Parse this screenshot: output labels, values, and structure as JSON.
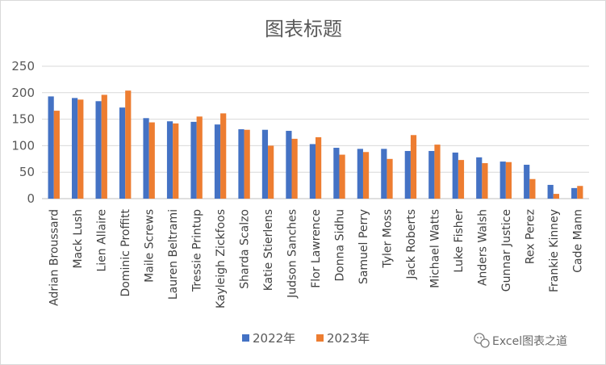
{
  "chart_data": {
    "type": "bar",
    "title": "图表标题",
    "xlabel": "",
    "ylabel": "",
    "ylim": [
      0,
      250
    ],
    "yticks": [
      0,
      50,
      100,
      150,
      200,
      250
    ],
    "grid": true,
    "legend_position": "bottom",
    "categories": [
      "Adrian Broussard",
      "Mack Lush",
      "Lien Allaire",
      "Dominic Proffitt",
      "Maile Screws",
      "Lauren Beltrami",
      "Tressie Printup",
      "Kayleigh Zickfoos",
      "Sharda Scalzo",
      "Katie Stierlens",
      "Judson Sanches",
      "Flor Lawrence",
      "Donna Sidhu",
      "Samuel Perry",
      "Tyler Moss",
      "Jack Roberts",
      "Michael Watts",
      "Luke Fisher",
      "Anders Walsh",
      "Gunnar Justice",
      "Rex Perez",
      "Frankie Kinney",
      "Cade Mann"
    ],
    "series": [
      {
        "name": "2022年",
        "color": "#4472c4",
        "values": [
          193,
          190,
          184,
          172,
          152,
          146,
          145,
          140,
          131,
          130,
          128,
          103,
          96,
          94,
          94,
          90,
          90,
          87,
          78,
          70,
          64,
          26,
          20
        ]
      },
      {
        "name": "2023年",
        "color": "#ed7d31",
        "values": [
          166,
          187,
          196,
          204,
          144,
          142,
          155,
          161,
          130,
          100,
          113,
          116,
          83,
          88,
          75,
          120,
          102,
          73,
          67,
          69,
          37,
          9,
          24
        ]
      }
    ]
  },
  "watermark": {
    "icon": "wechat-icon",
    "text": "Excel图表之道"
  }
}
